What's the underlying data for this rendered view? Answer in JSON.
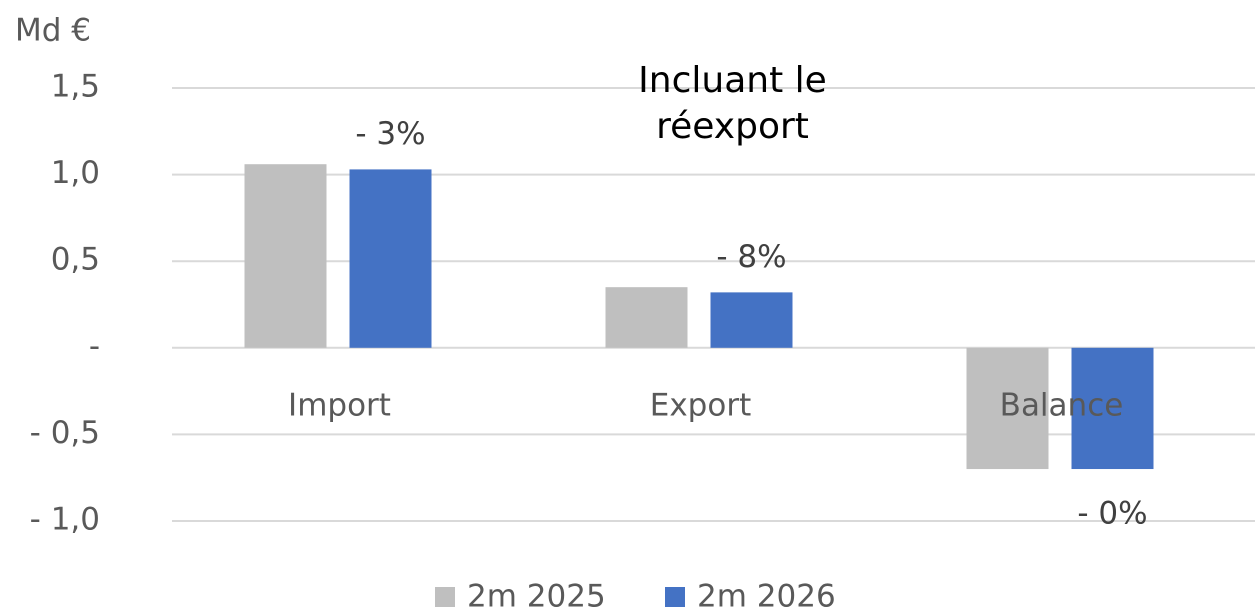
{
  "chart_data": {
    "type": "bar",
    "title": "Incluant le réexport",
    "y_axis_label": "Md €",
    "categories": [
      "Import",
      "Export",
      "Balance"
    ],
    "series": [
      {
        "name": "2m 2025",
        "color": "#bfbfbf",
        "values": [
          1.06,
          0.35,
          -0.7
        ]
      },
      {
        "name": "2m 2026",
        "color": "#4472c4",
        "values": [
          1.03,
          0.32,
          -0.7
        ]
      }
    ],
    "annotations": [
      "- 3%",
      "- 8%",
      "- 0%"
    ],
    "ylim": [
      -1.0,
      1.5
    ],
    "yticks": [
      {
        "value": -1.0,
        "label": "- 1,0"
      },
      {
        "value": -0.5,
        "label": "- 0,5"
      },
      {
        "value": 0,
        "label": "-"
      },
      {
        "value": 0.5,
        "label": "0,5"
      },
      {
        "value": 1.0,
        "label": "1,0"
      },
      {
        "value": 1.5,
        "label": "1,5"
      }
    ],
    "grid": true,
    "legend": "bottom"
  }
}
